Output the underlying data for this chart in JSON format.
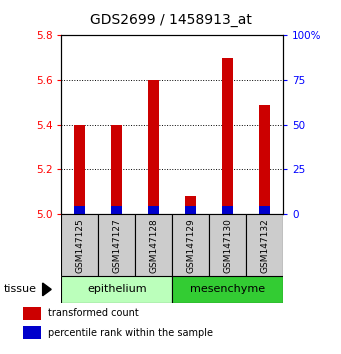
{
  "title": "GDS2699 / 1458913_at",
  "samples": [
    "GSM147125",
    "GSM147127",
    "GSM147128",
    "GSM147129",
    "GSM147130",
    "GSM147132"
  ],
  "red_values": [
    5.4,
    5.4,
    5.6,
    5.08,
    5.7,
    5.49
  ],
  "blue_heights": [
    0.035,
    0.035,
    0.035,
    0.035,
    0.035,
    0.035
  ],
  "groups": [
    {
      "label": "epithelium",
      "start": 0,
      "end": 3,
      "color": "#bbffbb"
    },
    {
      "label": "mesenchyme",
      "start": 3,
      "end": 6,
      "color": "#33cc33"
    }
  ],
  "tissue_label": "tissue",
  "ylim": [
    5.0,
    5.8
  ],
  "yticks_left": [
    5.0,
    5.2,
    5.4,
    5.6,
    5.8
  ],
  "yticks_right": [
    0,
    25,
    50,
    75,
    100
  ],
  "right_tick_labels": [
    "0",
    "25",
    "50",
    "75",
    "100%"
  ],
  "bar_color": "#cc0000",
  "blue_color": "#0000cc",
  "bar_width": 0.3,
  "legend_red": "transformed count",
  "legend_blue": "percentile rank within the sample",
  "title_fontsize": 10,
  "tick_fontsize": 7.5,
  "sample_fontsize": 6.5,
  "group_fontsize": 8,
  "tissue_fontsize": 8
}
